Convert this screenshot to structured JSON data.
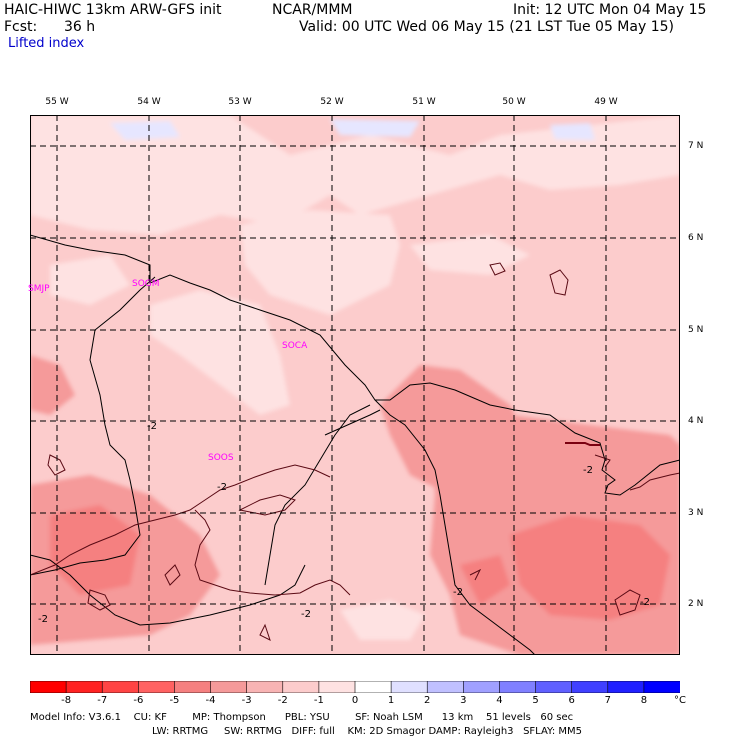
{
  "header": {
    "model": "HAIC-HIWC 13km ARW-GFS init",
    "org": "NCAR/MMM",
    "init": "Init: 12 UTC Mon 04 May 15",
    "fcst_label": "Fcst:",
    "fcst_value": "36 h",
    "valid": "Valid: 00 UTC Wed 06 May 15 (21 LST Tue 05 May 15)",
    "field": "Lifted index"
  },
  "map": {
    "lon_labels": [
      "55 W",
      "54 W",
      "53 W",
      "52 W",
      "51 W",
      "50 W",
      "49 W"
    ],
    "lat_labels": [
      "7 N",
      "6 N",
      "5 N",
      "4 N",
      "3 N",
      "2 N"
    ],
    "stations": [
      "SMJP",
      "SOGM",
      "SOCA",
      "SOOS"
    ],
    "contour_labels": [
      "-2",
      "-2",
      "-2",
      "-2",
      "-2",
      "-2",
      "-2"
    ]
  },
  "colorbar": {
    "colors": [
      "#ff0000",
      "#ff2222",
      "#ff4444",
      "#ff6262",
      "#f58080",
      "#f59a9a",
      "#f8b4b4",
      "#fccccc",
      "#fee2e2",
      "#ffffff",
      "#e0e0ff",
      "#c0c0ff",
      "#a0a0ff",
      "#8080ff",
      "#6060ff",
      "#4040ff",
      "#2020ff",
      "#0000ff"
    ],
    "ticks": [
      "-8",
      "-7",
      "-6",
      "-5",
      "-4",
      "-3",
      "-2",
      "-1",
      "0",
      "1",
      "2",
      "3",
      "4",
      "5",
      "6",
      "7",
      "8"
    ],
    "unit": "°C"
  },
  "model_info": {
    "line1": "Model Info: V3.6.1    CU: KF        MP: Thompson      PBL: YSU        SF: Noah LSM      13 km    51 levels   60 sec",
    "line2": "LW: RRTMG     SW: RRTMG   DIFF: full    KM: 2D Smagor DAMP: Rayleigh3   SFLAY: MM5"
  }
}
